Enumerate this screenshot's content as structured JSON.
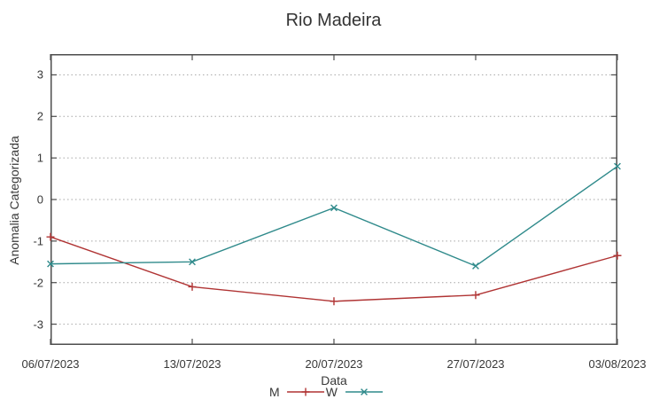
{
  "chart_data": {
    "type": "line",
    "title": "Rio Madeira",
    "xlabel": "Data",
    "ylabel": "Anomalia Categorizada",
    "categories": [
      "06/07/2023",
      "13/07/2023",
      "20/07/2023",
      "27/07/2023",
      "03/08/2023"
    ],
    "series": [
      {
        "name": "M",
        "color": "#b03434",
        "marker": "plus",
        "values": [
          -0.9,
          -2.1,
          -2.45,
          -2.3,
          -1.35
        ]
      },
      {
        "name": "W",
        "color": "#2f8a8b",
        "marker": "cross",
        "values": [
          -1.55,
          -1.5,
          -0.2,
          -1.6,
          0.8
        ]
      }
    ],
    "ylim": [
      -3.5,
      3.5
    ],
    "yticks": [
      -3,
      -2,
      -1,
      0,
      1,
      2,
      3
    ],
    "grid": "horizontal-dotted",
    "legend_position": "bottom-center",
    "colors": {
      "text": "#383838",
      "axis": "#4d4d4d",
      "grid": "#a6a6a6",
      "background": "#ffffff"
    }
  }
}
